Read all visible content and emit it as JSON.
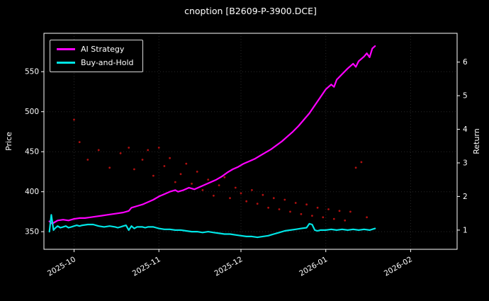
{
  "chart_data": {
    "type": "line",
    "title": "cnoption [B2609-P-3900.DCE]",
    "xlabel": "",
    "ylabel_left": "Price",
    "ylabel_right": "Return",
    "background_color": "#000000",
    "text_color": "#ffffff",
    "grid": "faint dotted",
    "legend_position": "upper-left",
    "x_range_days": [
      -2,
      149
    ],
    "x_epoch": "days relative to 2025-09-22",
    "y_range_price": [
      328,
      598
    ],
    "y_ticks_price": [
      350,
      400,
      450,
      500,
      550
    ],
    "y_ticks_return": [
      1,
      2,
      3,
      4,
      5,
      6
    ],
    "return_axis_map": {
      "price_at_return_1": 352,
      "price_per_return_unit": 42
    },
    "x_ticks": [
      {
        "t": 9,
        "label": "2025-10"
      },
      {
        "t": 40,
        "label": "2025-11"
      },
      {
        "t": 70,
        "label": "2025-12"
      },
      {
        "t": 101,
        "label": "2026-01"
      },
      {
        "t": 132,
        "label": "2026-02"
      }
    ],
    "series": [
      {
        "name": "AI Strategy",
        "color": "#ff00ff",
        "width": 2.2,
        "points": [
          [
            0,
            363
          ],
          [
            1,
            360
          ],
          [
            2,
            362
          ],
          [
            3,
            364
          ],
          [
            5,
            365
          ],
          [
            7,
            364
          ],
          [
            9,
            366
          ],
          [
            11,
            367
          ],
          [
            13,
            367
          ],
          [
            15,
            368
          ],
          [
            17,
            369
          ],
          [
            19,
            370
          ],
          [
            21,
            371
          ],
          [
            23,
            372
          ],
          [
            25,
            373
          ],
          [
            27,
            374
          ],
          [
            29,
            376
          ],
          [
            30,
            380
          ],
          [
            32,
            382
          ],
          [
            34,
            384
          ],
          [
            36,
            387
          ],
          [
            38,
            390
          ],
          [
            40,
            394
          ],
          [
            42,
            397
          ],
          [
            44,
            400
          ],
          [
            46,
            402
          ],
          [
            47,
            400
          ],
          [
            49,
            402
          ],
          [
            51,
            405
          ],
          [
            53,
            403
          ],
          [
            55,
            406
          ],
          [
            57,
            409
          ],
          [
            59,
            412
          ],
          [
            61,
            415
          ],
          [
            63,
            419
          ],
          [
            65,
            424
          ],
          [
            67,
            428
          ],
          [
            69,
            431
          ],
          [
            71,
            435
          ],
          [
            73,
            438
          ],
          [
            75,
            441
          ],
          [
            77,
            445
          ],
          [
            79,
            449
          ],
          [
            81,
            453
          ],
          [
            83,
            458
          ],
          [
            85,
            463
          ],
          [
            87,
            469
          ],
          [
            89,
            475
          ],
          [
            91,
            482
          ],
          [
            93,
            490
          ],
          [
            95,
            498
          ],
          [
            97,
            508
          ],
          [
            99,
            518
          ],
          [
            101,
            528
          ],
          [
            103,
            534
          ],
          [
            104,
            531
          ],
          [
            105,
            540
          ],
          [
            107,
            547
          ],
          [
            109,
            554
          ],
          [
            111,
            560
          ],
          [
            112,
            556
          ],
          [
            113,
            563
          ],
          [
            115,
            569
          ],
          [
            116,
            573
          ],
          [
            117,
            568
          ],
          [
            118,
            579
          ],
          [
            119,
            582
          ]
        ]
      },
      {
        "name": "Buy-and-Hold",
        "color": "#00e5e5",
        "width": 2.2,
        "points": [
          [
            0,
            350
          ],
          [
            0.7,
            371
          ],
          [
            1.5,
            352
          ],
          [
            2,
            354
          ],
          [
            3,
            357
          ],
          [
            4,
            355
          ],
          [
            5,
            356
          ],
          [
            6,
            357
          ],
          [
            7,
            355
          ],
          [
            8,
            356
          ],
          [
            9,
            357
          ],
          [
            10,
            358
          ],
          [
            11,
            357
          ],
          [
            12,
            358
          ],
          [
            14,
            359
          ],
          [
            16,
            359
          ],
          [
            18,
            357
          ],
          [
            20,
            356
          ],
          [
            22,
            357
          ],
          [
            24,
            356
          ],
          [
            25,
            355
          ],
          [
            26,
            356
          ],
          [
            27,
            357
          ],
          [
            28,
            358
          ],
          [
            29,
            352
          ],
          [
            30,
            357
          ],
          [
            31,
            354
          ],
          [
            32,
            356
          ],
          [
            34,
            356
          ],
          [
            35,
            355
          ],
          [
            36,
            356
          ],
          [
            38,
            356
          ],
          [
            39,
            355
          ],
          [
            40,
            354
          ],
          [
            42,
            353
          ],
          [
            44,
            353
          ],
          [
            46,
            352
          ],
          [
            48,
            352
          ],
          [
            50,
            351
          ],
          [
            52,
            350
          ],
          [
            54,
            350
          ],
          [
            56,
            349
          ],
          [
            58,
            350
          ],
          [
            60,
            349
          ],
          [
            62,
            348
          ],
          [
            64,
            347
          ],
          [
            66,
            347
          ],
          [
            68,
            346
          ],
          [
            70,
            345
          ],
          [
            72,
            344
          ],
          [
            74,
            344
          ],
          [
            76,
            343
          ],
          [
            78,
            344
          ],
          [
            80,
            345
          ],
          [
            82,
            347
          ],
          [
            84,
            349
          ],
          [
            86,
            351
          ],
          [
            88,
            352
          ],
          [
            90,
            353
          ],
          [
            92,
            354
          ],
          [
            94,
            355
          ],
          [
            95,
            360
          ],
          [
            96,
            359
          ],
          [
            97,
            352
          ],
          [
            98,
            351
          ],
          [
            99,
            352
          ],
          [
            101,
            352
          ],
          [
            103,
            353
          ],
          [
            105,
            352
          ],
          [
            107,
            353
          ],
          [
            109,
            352
          ],
          [
            111,
            353
          ],
          [
            113,
            352
          ],
          [
            115,
            353
          ],
          [
            117,
            352
          ],
          [
            119,
            354
          ]
        ]
      }
    ],
    "scatter": {
      "name": "price-dots",
      "color": "#b01010",
      "radius": 1.4,
      "points": [
        [
          9,
          490
        ],
        [
          11,
          462
        ],
        [
          14,
          440
        ],
        [
          18,
          452
        ],
        [
          22,
          430
        ],
        [
          26,
          448
        ],
        [
          29,
          455
        ],
        [
          31,
          428
        ],
        [
          34,
          440
        ],
        [
          36,
          452
        ],
        [
          38,
          420
        ],
        [
          40,
          455
        ],
        [
          42,
          432
        ],
        [
          44,
          442
        ],
        [
          46,
          412
        ],
        [
          48,
          422
        ],
        [
          50,
          435
        ],
        [
          52,
          410
        ],
        [
          54,
          425
        ],
        [
          56,
          402
        ],
        [
          58,
          415
        ],
        [
          60,
          395
        ],
        [
          62,
          408
        ],
        [
          64,
          418
        ],
        [
          66,
          392
        ],
        [
          68,
          405
        ],
        [
          70,
          398
        ],
        [
          72,
          388
        ],
        [
          74,
          402
        ],
        [
          76,
          385
        ],
        [
          78,
          396
        ],
        [
          80,
          380
        ],
        [
          82,
          392
        ],
        [
          84,
          378
        ],
        [
          86,
          390
        ],
        [
          88,
          375
        ],
        [
          90,
          386
        ],
        [
          92,
          372
        ],
        [
          94,
          384
        ],
        [
          96,
          370
        ],
        [
          98,
          380
        ],
        [
          100,
          368
        ],
        [
          102,
          378
        ],
        [
          104,
          366
        ],
        [
          106,
          376
        ],
        [
          108,
          364
        ],
        [
          110,
          375
        ],
        [
          112,
          430
        ],
        [
          114,
          437
        ],
        [
          116,
          368
        ]
      ]
    }
  }
}
